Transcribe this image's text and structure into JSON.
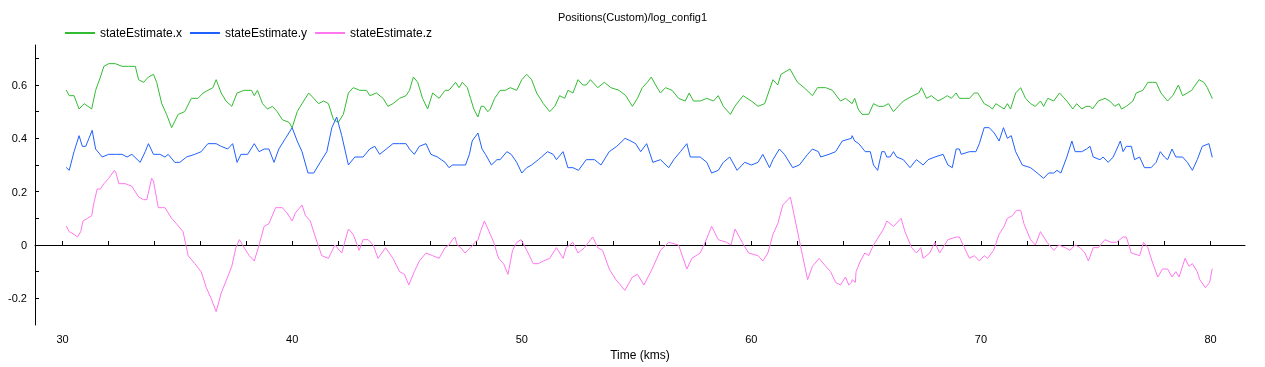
{
  "chart_data": {
    "type": "line",
    "title": "Positions(Custom)/log_config1",
    "xlabel": "Time (kms)",
    "legend": "top left",
    "marker": "none",
    "line_style": "solid",
    "xlim": [
      28.8,
      81.5
    ],
    "xticks": [
      30,
      {
        "value": 32,
        "label": null
      },
      {
        "value": 34,
        "label": null
      },
      {
        "value": 36,
        "label": null
      },
      {
        "value": 38,
        "label": null
      },
      40,
      {
        "value": 42,
        "label": null
      },
      {
        "value": 44,
        "label": null
      },
      {
        "value": 46,
        "label": null
      },
      {
        "value": 48,
        "label": null
      },
      50,
      {
        "value": 52,
        "label": null
      },
      {
        "value": 54,
        "label": null
      },
      {
        "value": 56,
        "label": null
      },
      {
        "value": 58,
        "label": null
      },
      60,
      {
        "value": 62,
        "label": null
      },
      {
        "value": 64,
        "label": null
      },
      {
        "value": 66,
        "label": null
      },
      {
        "value": 68,
        "label": null
      },
      70,
      {
        "value": 72,
        "label": null
      },
      {
        "value": 74,
        "label": null
      },
      {
        "value": 76,
        "label": null
      },
      {
        "value": 78,
        "label": null
      },
      80
    ],
    "ylim": [
      -0.3,
      0.75
    ],
    "yticks": [
      -0.2,
      {
        "value": -0.1,
        "label": null
      },
      0,
      {
        "value": 0.1,
        "label": null
      },
      0.2,
      {
        "value": 0.3,
        "label": null
      },
      0.4,
      {
        "value": 0.5,
        "label": null
      },
      0.6,
      {
        "value": 0.7,
        "label": null
      }
    ],
    "series": [
      {
        "name": "stateEstimate.x",
        "color": "#33bb33",
        "x": [
          30.17,
          30.29,
          30.5,
          30.72,
          30.94,
          31.27,
          31.44,
          31.65,
          31.8,
          32.01,
          32.3,
          32.59,
          32.88,
          33.17,
          33.31,
          33.53,
          33.74,
          33.96,
          34.1,
          34.32,
          34.53,
          34.75,
          35.04,
          35.32,
          35.61,
          35.9,
          36.12,
          36.33,
          36.55,
          36.69,
          36.91,
          37.12,
          37.37,
          37.6,
          37.91,
          38.23,
          38.35,
          38.49,
          38.71,
          38.92,
          39.14,
          39.35,
          39.57,
          39.86,
          40.0,
          40.22,
          40.43,
          40.72,
          40.94,
          41.15,
          41.37,
          41.58,
          41.8,
          42.01,
          42.23,
          42.45,
          42.66,
          42.95,
          43.24,
          43.38,
          43.67,
          43.96,
          44.17,
          44.39,
          44.68,
          44.96,
          45.11,
          45.28,
          45.47,
          45.68,
          45.9,
          46.12,
          46.4,
          46.66,
          46.83,
          47.12,
          47.27,
          47.41,
          47.63,
          47.77,
          47.91,
          48.09,
          48.23,
          48.35,
          48.52,
          48.63,
          48.82,
          49.06,
          49.28,
          49.5,
          49.78,
          50.0,
          50.22,
          50.43,
          50.65,
          50.94,
          51.22,
          51.44,
          51.65,
          51.87,
          52.01,
          52.23,
          52.45,
          52.66,
          52.81,
          52.99,
          53.31,
          53.6,
          53.88,
          54.24,
          54.53,
          54.82,
          55.04,
          55.25,
          55.47,
          55.64,
          55.83,
          56.04,
          56.26,
          56.55,
          56.83,
          57.12,
          57.29,
          57.48,
          57.77,
          58.06,
          58.35,
          58.56,
          58.78,
          59.09,
          59.28,
          59.64,
          60.0,
          60.29,
          60.58,
          60.94,
          61.15,
          61.29,
          61.68,
          62.01,
          62.3,
          62.66,
          62.88,
          63.24,
          63.53,
          63.88,
          64.1,
          64.39,
          64.5,
          64.65,
          64.82,
          64.99,
          65.11,
          65.32,
          65.54,
          65.76,
          65.97,
          66.19,
          66.4,
          66.62,
          66.83,
          67.05,
          67.29,
          67.41,
          67.63,
          67.84,
          68.13,
          68.35,
          68.53,
          68.71,
          68.92,
          69.06,
          69.28,
          69.5,
          69.71,
          69.86,
          70.14,
          70.36,
          70.5,
          70.65,
          70.83,
          71.01,
          71.15,
          71.29,
          71.51,
          71.73,
          71.94,
          72.16,
          72.37,
          72.59,
          72.73,
          72.91,
          73.17,
          73.42,
          73.74,
          74.0,
          74.17,
          74.39,
          74.58,
          74.75,
          74.86,
          75.11,
          75.4,
          75.61,
          75.83,
          76.01,
          76.12,
          76.33,
          76.62,
          76.76,
          77.05,
          77.27,
          77.48,
          77.63,
          77.84,
          78.13,
          78.35,
          78.6,
          78.78,
          78.99,
          79.18,
          79.5,
          79.71,
          79.86,
          80.07
        ],
        "values": [
          0.58,
          0.56,
          0.56,
          0.51,
          0.53,
          0.51,
          0.58,
          0.63,
          0.67,
          0.68,
          0.68,
          0.67,
          0.67,
          0.67,
          0.62,
          0.61,
          0.63,
          0.64,
          0.61,
          0.53,
          0.49,
          0.44,
          0.49,
          0.5,
          0.55,
          0.55,
          0.57,
          0.58,
          0.59,
          0.62,
          0.57,
          0.54,
          0.52,
          0.57,
          0.58,
          0.58,
          0.56,
          0.58,
          0.53,
          0.51,
          0.52,
          0.5,
          0.47,
          0.46,
          0.44,
          0.5,
          0.53,
          0.57,
          0.55,
          0.53,
          0.54,
          0.53,
          0.47,
          0.46,
          0.49,
          0.57,
          0.59,
          0.58,
          0.58,
          0.56,
          0.57,
          0.55,
          0.52,
          0.53,
          0.55,
          0.56,
          0.58,
          0.63,
          0.61,
          0.55,
          0.51,
          0.57,
          0.55,
          0.58,
          0.58,
          0.61,
          0.59,
          0.61,
          0.59,
          0.55,
          0.51,
          0.48,
          0.52,
          0.52,
          0.5,
          0.51,
          0.55,
          0.58,
          0.58,
          0.59,
          0.58,
          0.62,
          0.64,
          0.62,
          0.57,
          0.53,
          0.5,
          0.52,
          0.56,
          0.55,
          0.58,
          0.57,
          0.62,
          0.6,
          0.6,
          0.62,
          0.59,
          0.61,
          0.59,
          0.58,
          0.56,
          0.52,
          0.55,
          0.59,
          0.61,
          0.63,
          0.6,
          0.57,
          0.59,
          0.58,
          0.55,
          0.54,
          0.57,
          0.54,
          0.54,
          0.55,
          0.54,
          0.56,
          0.52,
          0.49,
          0.52,
          0.56,
          0.54,
          0.52,
          0.53,
          0.62,
          0.6,
          0.64,
          0.66,
          0.61,
          0.59,
          0.56,
          0.59,
          0.59,
          0.58,
          0.54,
          0.55,
          0.53,
          0.55,
          0.51,
          0.49,
          0.49,
          0.49,
          0.53,
          0.52,
          0.52,
          0.53,
          0.5,
          0.52,
          0.54,
          0.55,
          0.56,
          0.57,
          0.59,
          0.55,
          0.56,
          0.54,
          0.55,
          0.56,
          0.55,
          0.57,
          0.55,
          0.55,
          0.55,
          0.57,
          0.57,
          0.53,
          0.52,
          0.51,
          0.53,
          0.52,
          0.51,
          0.53,
          0.51,
          0.57,
          0.59,
          0.55,
          0.53,
          0.52,
          0.54,
          0.52,
          0.55,
          0.54,
          0.57,
          0.54,
          0.51,
          0.53,
          0.51,
          0.52,
          0.52,
          0.51,
          0.54,
          0.55,
          0.54,
          0.52,
          0.53,
          0.51,
          0.52,
          0.54,
          0.57,
          0.58,
          0.61,
          0.61,
          0.61,
          0.57,
          0.54,
          0.56,
          0.6,
          0.56,
          0.57,
          0.58,
          0.62,
          0.61,
          0.59,
          0.55
        ]
      },
      {
        "name": "stateEstimate.y",
        "color": "#2060ff",
        "x": [
          30.17,
          30.29,
          30.5,
          30.72,
          30.86,
          31.01,
          31.15,
          31.29,
          31.44,
          31.73,
          32.01,
          32.3,
          32.59,
          32.81,
          33.02,
          33.38,
          33.6,
          33.74,
          33.96,
          34.24,
          34.46,
          34.6,
          34.89,
          35.11,
          35.4,
          35.76,
          36.04,
          36.33,
          36.69,
          36.91,
          37.19,
          37.41,
          37.6,
          37.77,
          38.06,
          38.35,
          38.56,
          38.78,
          38.99,
          39.21,
          39.42,
          39.71,
          40.0,
          40.22,
          40.43,
          40.69,
          40.94,
          41.22,
          41.51,
          41.73,
          41.94,
          42.16,
          42.45,
          42.73,
          43.09,
          43.38,
          43.6,
          43.81,
          44.1,
          44.39,
          44.68,
          44.96,
          45.11,
          45.32,
          45.54,
          45.83,
          46.04,
          46.33,
          46.66,
          46.83,
          46.98,
          47.19,
          47.55,
          47.72,
          47.84,
          48.09,
          48.27,
          48.42,
          48.68,
          48.92,
          49.06,
          49.35,
          49.54,
          49.78,
          50.0,
          50.22,
          50.43,
          50.72,
          50.86,
          51.12,
          51.37,
          51.51,
          51.8,
          52.01,
          52.23,
          52.47,
          52.81,
          53.17,
          53.45,
          53.81,
          54.14,
          54.5,
          54.75,
          54.96,
          55.18,
          55.44,
          55.71,
          56.04,
          56.4,
          56.62,
          56.91,
          57.19,
          57.34,
          57.77,
          58.06,
          58.27,
          58.56,
          58.78,
          59.06,
          59.38,
          59.71,
          60.0,
          60.29,
          60.5,
          60.79,
          60.94,
          61.22,
          61.44,
          61.8,
          62.09,
          62.45,
          62.66,
          62.92,
          63.02,
          63.38,
          63.67,
          63.96,
          64.36,
          64.39,
          64.5,
          64.68,
          64.96,
          65.18,
          65.32,
          65.5,
          65.68,
          65.8,
          65.9,
          66.04,
          66.19,
          66.33,
          66.62,
          66.91,
          67.19,
          67.48,
          67.7,
          67.99,
          68.35,
          68.56,
          68.75,
          68.92,
          69.06,
          69.14,
          69.5,
          69.78,
          69.93,
          70.14,
          70.36,
          70.58,
          70.79,
          70.98,
          71.15,
          71.32,
          71.51,
          71.8,
          72.16,
          72.45,
          72.73,
          72.95,
          73.17,
          73.31,
          73.48,
          73.74,
          73.96,
          74.1,
          74.39,
          74.6,
          74.75,
          74.89,
          75.18,
          75.32,
          75.54,
          75.76,
          75.97,
          76.07,
          76.19,
          76.33,
          76.55,
          76.69,
          76.91,
          77.12,
          77.41,
          77.63,
          77.81,
          77.99,
          78.13,
          78.32,
          78.49,
          78.78,
          78.99,
          79.21,
          79.42,
          79.64,
          79.93,
          80.07
        ],
        "values": [
          0.29,
          0.28,
          0.35,
          0.41,
          0.37,
          0.37,
          0.4,
          0.43,
          0.36,
          0.33,
          0.34,
          0.34,
          0.34,
          0.33,
          0.34,
          0.31,
          0.35,
          0.38,
          0.34,
          0.34,
          0.33,
          0.34,
          0.31,
          0.31,
          0.33,
          0.34,
          0.35,
          0.38,
          0.38,
          0.37,
          0.36,
          0.38,
          0.31,
          0.34,
          0.34,
          0.38,
          0.35,
          0.36,
          0.36,
          0.31,
          0.36,
          0.4,
          0.44,
          0.39,
          0.35,
          0.27,
          0.27,
          0.31,
          0.35,
          0.44,
          0.48,
          0.41,
          0.3,
          0.33,
          0.33,
          0.36,
          0.37,
          0.34,
          0.36,
          0.38,
          0.38,
          0.38,
          0.36,
          0.34,
          0.37,
          0.38,
          0.34,
          0.33,
          0.31,
          0.29,
          0.3,
          0.3,
          0.3,
          0.34,
          0.39,
          0.42,
          0.36,
          0.34,
          0.3,
          0.32,
          0.32,
          0.35,
          0.34,
          0.31,
          0.27,
          0.29,
          0.3,
          0.32,
          0.33,
          0.35,
          0.34,
          0.32,
          0.35,
          0.29,
          0.29,
          0.28,
          0.32,
          0.32,
          0.3,
          0.35,
          0.37,
          0.4,
          0.39,
          0.38,
          0.35,
          0.38,
          0.31,
          0.32,
          0.29,
          0.32,
          0.35,
          0.38,
          0.33,
          0.33,
          0.31,
          0.27,
          0.28,
          0.31,
          0.33,
          0.28,
          0.31,
          0.3,
          0.31,
          0.34,
          0.29,
          0.32,
          0.36,
          0.34,
          0.29,
          0.3,
          0.34,
          0.36,
          0.35,
          0.33,
          0.34,
          0.35,
          0.39,
          0.4,
          0.41,
          0.39,
          0.38,
          0.35,
          0.35,
          0.3,
          0.28,
          0.35,
          0.35,
          0.33,
          0.33,
          0.35,
          0.33,
          0.32,
          0.29,
          0.32,
          0.3,
          0.32,
          0.33,
          0.34,
          0.3,
          0.29,
          0.36,
          0.36,
          0.34,
          0.35,
          0.35,
          0.38,
          0.44,
          0.44,
          0.42,
          0.39,
          0.44,
          0.4,
          0.41,
          0.35,
          0.3,
          0.29,
          0.27,
          0.25,
          0.27,
          0.27,
          0.28,
          0.27,
          0.33,
          0.39,
          0.35,
          0.35,
          0.36,
          0.37,
          0.33,
          0.32,
          0.33,
          0.31,
          0.33,
          0.37,
          0.39,
          0.35,
          0.37,
          0.37,
          0.32,
          0.33,
          0.29,
          0.29,
          0.31,
          0.35,
          0.33,
          0.32,
          0.36,
          0.33,
          0.33,
          0.31,
          0.28,
          0.32,
          0.37,
          0.38,
          0.33
        ]
      },
      {
        "name": "stateEstimate.z",
        "color": "#ff77ee",
        "x": [
          30.17,
          30.29,
          30.5,
          30.65,
          30.79,
          30.89,
          31.08,
          31.27,
          31.37,
          31.51,
          31.65,
          31.8,
          32.01,
          32.26,
          32.33,
          32.45,
          32.73,
          33.02,
          33.31,
          33.53,
          33.67,
          33.88,
          33.96,
          34.17,
          34.46,
          34.75,
          34.96,
          35.25,
          35.47,
          35.76,
          36.04,
          36.26,
          36.47,
          36.69,
          36.91,
          37.19,
          37.37,
          37.55,
          37.7,
          37.91,
          38.13,
          38.35,
          38.56,
          38.78,
          38.99,
          39.28,
          39.57,
          39.78,
          40.0,
          40.14,
          40.43,
          40.58,
          40.79,
          41.01,
          41.29,
          41.58,
          41.86,
          42.16,
          42.45,
          42.66,
          42.92,
          43.09,
          43.31,
          43.53,
          43.74,
          44.07,
          44.39,
          44.68,
          44.89,
          45.08,
          45.32,
          45.54,
          45.83,
          46.12,
          46.4,
          46.66,
          46.83,
          46.98,
          47.09,
          47.19,
          47.34,
          47.53,
          47.77,
          47.96,
          48.1,
          48.2,
          48.37,
          48.53,
          48.78,
          48.99,
          49.21,
          49.4,
          49.6,
          49.78,
          49.97,
          50.22,
          50.5,
          50.72,
          50.94,
          51.22,
          51.51,
          51.8,
          51.94,
          52.23,
          52.45,
          52.73,
          53.09,
          53.31,
          53.52,
          53.81,
          54.1,
          54.49,
          54.82,
          55.04,
          55.32,
          55.68,
          56.04,
          56.4,
          56.83,
          57.19,
          57.41,
          57.77,
          57.99,
          58.27,
          58.56,
          58.92,
          59.11,
          59.29,
          59.6,
          59.88,
          60.29,
          60.5,
          60.72,
          60.94,
          61.15,
          61.37,
          61.7,
          61.94,
          62.23,
          62.45,
          62.66,
          62.95,
          63.24,
          63.45,
          63.67,
          63.88,
          64.1,
          64.24,
          64.36,
          64.39,
          64.53,
          64.56,
          64.75,
          64.94,
          65.11,
          65.32,
          65.54,
          65.76,
          65.9,
          66.19,
          66.52,
          66.69,
          66.98,
          67.19,
          67.38,
          67.48,
          67.77,
          67.99,
          68.2,
          68.56,
          68.92,
          69.06,
          69.28,
          69.5,
          69.71,
          69.93,
          70.14,
          70.29,
          70.55,
          70.79,
          71.01,
          71.15,
          71.37,
          71.55,
          71.73,
          71.87,
          72.16,
          72.37,
          72.59,
          72.88,
          73.17,
          73.38,
          73.67,
          73.88,
          74.1,
          74.32,
          74.53,
          74.68,
          74.89,
          75.11,
          75.4,
          75.68,
          75.9,
          76.19,
          76.33,
          76.55,
          76.91,
          77.08,
          77.27,
          77.45,
          77.7,
          77.91,
          78.13,
          78.32,
          78.49,
          78.63,
          78.89,
          79.06,
          79.21,
          79.42,
          79.53,
          79.78,
          79.96,
          80.07
        ],
        "values": [
          0.07,
          0.05,
          0.04,
          0.03,
          0.05,
          0.09,
          0.1,
          0.11,
          0.16,
          0.21,
          0.21,
          0.23,
          0.25,
          0.28,
          0.27,
          0.23,
          0.23,
          0.22,
          0.18,
          0.17,
          0.17,
          0.25,
          0.24,
          0.14,
          0.14,
          0.1,
          0.08,
          0.05,
          -0.04,
          -0.07,
          -0.1,
          -0.16,
          -0.2,
          -0.25,
          -0.18,
          -0.12,
          -0.08,
          -0.01,
          0.02,
          -0.01,
          -0.04,
          -0.06,
          0.0,
          0.07,
          0.08,
          0.14,
          0.14,
          0.12,
          0.09,
          0.12,
          0.15,
          0.11,
          0.09,
          0.03,
          -0.04,
          -0.05,
          0.0,
          -0.03,
          0.06,
          0.04,
          -0.02,
          0.02,
          0.02,
          0.0,
          -0.05,
          -0.01,
          -0.05,
          -0.1,
          -0.11,
          -0.15,
          -0.1,
          -0.06,
          -0.03,
          -0.04,
          -0.05,
          -0.01,
          0.0,
          0.02,
          0.03,
          0.0,
          -0.01,
          -0.03,
          -0.01,
          0.01,
          0.02,
          0.05,
          0.09,
          0.06,
          0.01,
          -0.05,
          -0.07,
          -0.11,
          -0.02,
          0.01,
          0.02,
          -0.02,
          -0.07,
          -0.07,
          -0.06,
          -0.05,
          -0.01,
          -0.05,
          -0.01,
          0.01,
          -0.03,
          -0.01,
          0.03,
          -0.01,
          -0.02,
          -0.09,
          -0.13,
          -0.17,
          -0.12,
          -0.11,
          -0.15,
          -0.09,
          -0.02,
          0.01,
          0.0,
          -0.09,
          -0.05,
          -0.03,
          0.01,
          0.07,
          0.02,
          0.01,
          0.0,
          0.06,
          0.01,
          -0.03,
          -0.04,
          -0.06,
          -0.03,
          0.04,
          0.08,
          0.15,
          0.18,
          0.08,
          -0.04,
          -0.13,
          -0.08,
          -0.05,
          -0.08,
          -0.1,
          -0.14,
          -0.15,
          -0.12,
          -0.15,
          -0.14,
          -0.13,
          -0.14,
          -0.1,
          -0.06,
          -0.03,
          -0.04,
          0.0,
          0.03,
          0.06,
          0.09,
          0.07,
          0.1,
          0.05,
          -0.01,
          -0.03,
          -0.01,
          -0.05,
          -0.03,
          0.01,
          -0.03,
          0.02,
          0.03,
          0.03,
          -0.01,
          -0.05,
          -0.04,
          -0.06,
          -0.04,
          -0.05,
          -0.02,
          0.04,
          0.07,
          0.1,
          0.11,
          0.13,
          0.13,
          0.08,
          0.02,
          0.0,
          0.05,
          0.01,
          -0.02,
          0.0,
          -0.01,
          -0.02,
          0.0,
          -0.01,
          -0.03,
          -0.06,
          -0.01,
          -0.01,
          0.02,
          0.01,
          0.01,
          0.03,
          0.03,
          -0.03,
          -0.04,
          0.01,
          -0.01,
          -0.06,
          -0.12,
          -0.09,
          -0.09,
          -0.12,
          -0.1,
          -0.12,
          -0.05,
          -0.08,
          -0.07,
          -0.1,
          -0.13,
          -0.16,
          -0.14,
          -0.09
        ]
      }
    ]
  }
}
